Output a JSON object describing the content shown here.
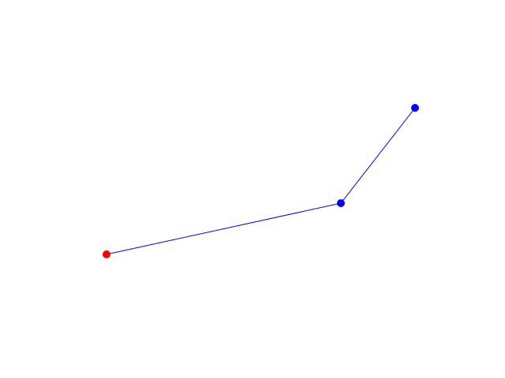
{
  "diagram": {
    "background_color": "#ffffff",
    "edge_color": "#0000ff",
    "nodes": [
      {
        "id": "start",
        "color": "#ff0000"
      },
      {
        "id": "middle",
        "color": "#0000ff"
      },
      {
        "id": "end",
        "color": "#0000ff"
      }
    ],
    "edges": [
      {
        "from": "start",
        "to": "middle"
      },
      {
        "from": "middle",
        "to": "end"
      }
    ]
  }
}
